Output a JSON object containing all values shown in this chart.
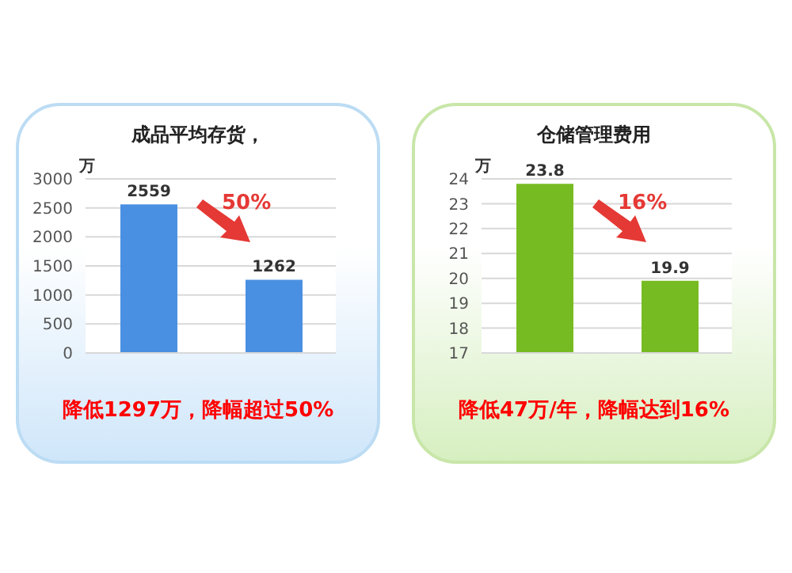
{
  "chart_data": [
    {
      "type": "bar",
      "title": "成品平均存货，",
      "ylabel": "万",
      "categories": [
        null,
        null
      ],
      "values": [
        2559,
        1262
      ],
      "color": "#4a90e2",
      "ylim": [
        0,
        3000
      ],
      "yticks": [
        0,
        500,
        1000,
        1500,
        2000,
        2500,
        3000
      ],
      "grid": "y",
      "data_labels": true,
      "annotations": [
        "50%",
        "降低1297万，降幅超过50%"
      ]
    },
    {
      "type": "bar",
      "title": "仓储管理费用",
      "ylabel": "万",
      "categories": [
        null,
        null
      ],
      "values": [
        23.8,
        19.9
      ],
      "color": "#77bb22",
      "ylim": [
        17,
        24
      ],
      "yticks": [
        17,
        18,
        19,
        20,
        21,
        22,
        23,
        24
      ],
      "grid": "y",
      "data_labels": true,
      "annotations": [
        "16%",
        "降低47万/年，降幅达到16%"
      ]
    }
  ]
}
